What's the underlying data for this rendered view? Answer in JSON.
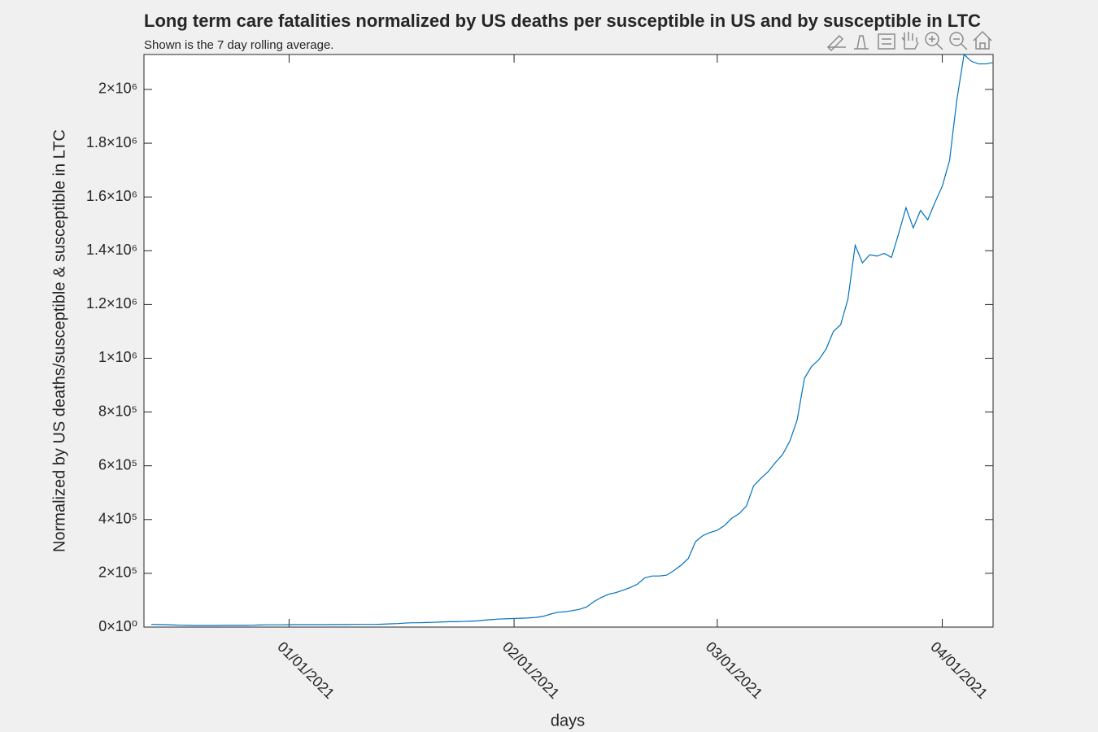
{
  "chart_data": {
    "type": "line",
    "title": "Long term care fatalities normalized by US deaths per susceptible in US and by susceptible in LTC",
    "subtitle": "Shown is the 7 day rolling average.",
    "x_label": "days",
    "y_label": "Normalized by US deaths/susceptible & susceptible in LTC",
    "x": [
      "12/13/2020",
      "12/14/2020",
      "12/15/2020",
      "12/16/2020",
      "12/17/2020",
      "12/18/2020",
      "12/19/2020",
      "12/20/2020",
      "12/21/2020",
      "12/22/2020",
      "12/23/2020",
      "12/24/2020",
      "12/25/2020",
      "12/26/2020",
      "12/27/2020",
      "12/28/2020",
      "12/29/2020",
      "12/30/2020",
      "12/31/2020",
      "01/01/2021",
      "01/02/2021",
      "01/03/2021",
      "01/04/2021",
      "01/05/2021",
      "01/06/2021",
      "01/07/2021",
      "01/08/2021",
      "01/09/2021",
      "01/10/2021",
      "01/11/2021",
      "01/12/2021",
      "01/13/2021",
      "01/14/2021",
      "01/15/2021",
      "01/16/2021",
      "01/17/2021",
      "01/18/2021",
      "01/19/2021",
      "01/20/2021",
      "01/21/2021",
      "01/22/2021",
      "01/23/2021",
      "01/24/2021",
      "01/25/2021",
      "01/26/2021",
      "01/27/2021",
      "01/28/2021",
      "01/29/2021",
      "01/30/2021",
      "01/31/2021",
      "02/01/2021",
      "02/02/2021",
      "02/03/2021",
      "02/04/2021",
      "02/05/2021",
      "02/06/2021",
      "02/07/2021",
      "02/08/2021",
      "02/09/2021",
      "02/10/2021",
      "02/11/2021",
      "02/12/2021",
      "02/13/2021",
      "02/14/2021",
      "02/15/2021",
      "02/16/2021",
      "02/17/2021",
      "02/18/2021",
      "02/19/2021",
      "02/20/2021",
      "02/21/2021",
      "02/22/2021",
      "02/23/2021",
      "02/24/2021",
      "02/25/2021",
      "02/26/2021",
      "02/27/2021",
      "02/28/2021",
      "03/01/2021",
      "03/02/2021",
      "03/03/2021",
      "03/04/2021",
      "03/05/2021",
      "03/06/2021",
      "03/07/2021",
      "03/08/2021",
      "03/09/2021",
      "03/10/2021",
      "03/11/2021",
      "03/12/2021",
      "03/13/2021",
      "03/14/2021",
      "03/15/2021",
      "03/16/2021",
      "03/17/2021",
      "03/18/2021",
      "03/19/2021",
      "03/20/2021",
      "03/21/2021",
      "03/22/2021",
      "03/23/2021",
      "03/24/2021",
      "03/25/2021",
      "03/26/2021",
      "03/27/2021",
      "03/28/2021",
      "03/29/2021",
      "03/30/2021",
      "03/31/2021",
      "04/01/2021",
      "04/02/2021",
      "04/03/2021",
      "04/04/2021",
      "04/05/2021",
      "04/06/2021",
      "04/07/2021",
      "04/08/2021"
    ],
    "series": [
      {
        "color": "#0072bd",
        "values": [
          10000,
          9500,
          9000,
          8000,
          7000,
          6500,
          6000,
          6000,
          6000,
          6000,
          6500,
          6500,
          6500,
          6500,
          7000,
          8000,
          8500,
          8500,
          8500,
          9000,
          9000,
          9000,
          9000,
          9000,
          9000,
          9500,
          9500,
          9500,
          10000,
          10000,
          10000,
          10000,
          11000,
          12000,
          13000,
          15000,
          16000,
          16000,
          17000,
          18000,
          19000,
          20000,
          20000,
          21000,
          22000,
          23000,
          26000,
          28000,
          30000,
          31000,
          32000,
          33000,
          34000,
          36000,
          40000,
          48000,
          55000,
          57000,
          61000,
          66000,
          75000,
          95000,
          110000,
          122000,
          128000,
          137000,
          147000,
          160000,
          183000,
          190000,
          190000,
          193000,
          210000,
          230000,
          255000,
          318000,
          340000,
          352000,
          360000,
          378000,
          405000,
          422000,
          450000,
          525000,
          553000,
          578000,
          612000,
          642000,
          692000,
          770000,
          925000,
          970000,
          995000,
          1035000,
          1100000,
          1125000,
          1220000,
          1420000,
          1355000,
          1385000,
          1380000,
          1390000,
          1375000,
          1465000,
          1560000,
          1485000,
          1550000,
          1515000,
          1580000,
          1640000,
          1735000,
          1960000,
          2130000,
          2105000,
          2095000,
          2095000,
          2100000
        ]
      }
    ],
    "xlim": [
      "12/12/2020",
      "04/08/2021"
    ],
    "xticks": [
      "01/01/2021",
      "02/01/2021",
      "03/01/2021",
      "04/01/2021"
    ],
    "ylim": [
      0,
      2130000
    ],
    "yticks": [
      {
        "value": 0,
        "label": "0×10⁰"
      },
      {
        "value": 200000,
        "label": "2×10⁵"
      },
      {
        "value": 400000,
        "label": "4×10⁵"
      },
      {
        "value": 600000,
        "label": "6×10⁵"
      },
      {
        "value": 800000,
        "label": "8×10⁵"
      },
      {
        "value": 1000000,
        "label": "1×10⁶"
      },
      {
        "value": 1200000,
        "label": "1.2×10⁶"
      },
      {
        "value": 1400000,
        "label": "1.4×10⁶"
      },
      {
        "value": 1600000,
        "label": "1.6×10⁶"
      },
      {
        "value": 1800000,
        "label": "1.8×10⁶"
      },
      {
        "value": 2000000,
        "label": "2×10⁶"
      }
    ],
    "grid": false
  }
}
